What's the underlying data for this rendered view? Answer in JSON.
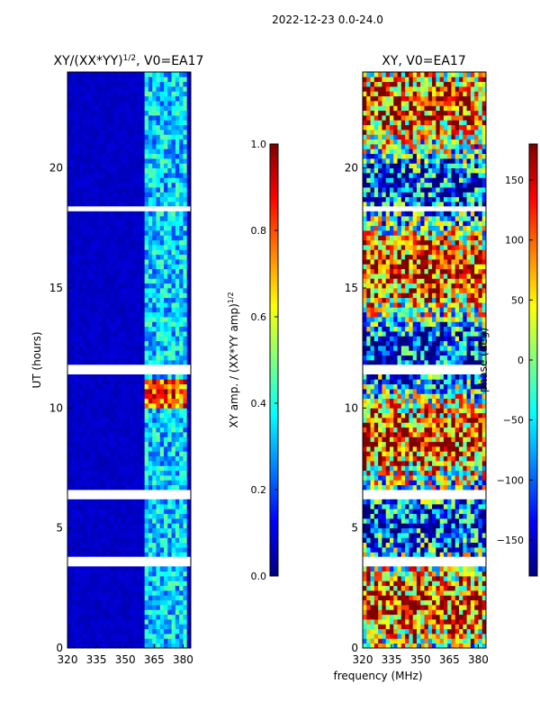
{
  "suptitle": "2022-12-23 0.0-24.0",
  "xlabel_shared": "frequency (MHz)",
  "chart_data": [
    {
      "type": "heatmap",
      "title": "XY/(XX*YY)",
      "title_sup": "1/2",
      "title_suffix": ", V0=EA17",
      "ylabel": "UT (hours)",
      "xlim": [
        320,
        384
      ],
      "ylim": [
        0,
        24
      ],
      "xticks": [
        320,
        335,
        350,
        365,
        380
      ],
      "yticks": [
        0,
        5,
        10,
        15,
        20
      ],
      "colormap": "jet",
      "background_level": 0.05,
      "active_band_mhz": [
        360,
        382
      ],
      "peak_band_hours": [
        10,
        11.2
      ],
      "blank_hours": [
        3.5,
        3.8,
        6.2,
        6.5,
        11.5,
        11.8,
        18.2,
        18.4
      ],
      "colorbar": {
        "label": "XY amp. / (XX*YY amp)",
        "label_sup": "1/2",
        "range": [
          0.0,
          1.0
        ],
        "ticks": [
          "0.0",
          "0.2",
          "0.4",
          "0.6",
          "0.8",
          "1.0"
        ]
      }
    },
    {
      "type": "heatmap",
      "title": "XY, V0=EA17",
      "ylabel": "",
      "xlim": [
        320,
        384
      ],
      "ylim": [
        0,
        24
      ],
      "xticks": [
        320,
        335,
        350,
        365,
        380
      ],
      "yticks": [
        0,
        5,
        10,
        15,
        20
      ],
      "colormap": "jet",
      "blank_hours": [
        3.5,
        3.8,
        6.2,
        6.5,
        11.5,
        11.8,
        18.2,
        18.4
      ],
      "colorbar": {
        "label": "phase (deg)",
        "range": [
          -180,
          180
        ],
        "ticks": [
          "−150",
          "−100",
          "−50",
          "0",
          "50",
          "100",
          "150"
        ],
        "tick_values": [
          -150,
          -100,
          -50,
          0,
          50,
          100,
          150
        ]
      }
    }
  ]
}
